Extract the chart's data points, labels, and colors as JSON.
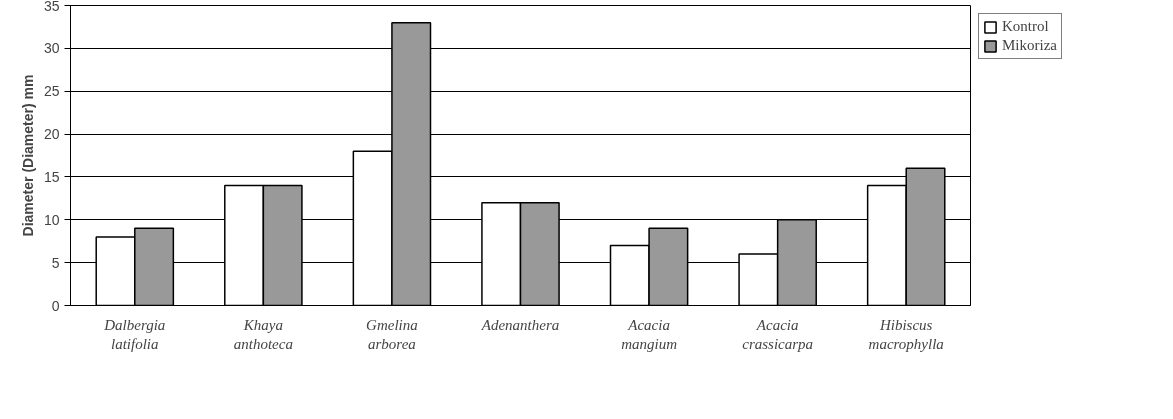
{
  "chart_data": {
    "type": "bar",
    "ylabel": "Diameter (Diameter) mm",
    "categories": [
      "Dalbergia latifolia",
      "Khaya anthoteca",
      "Gmelina arborea",
      "Adenanthera",
      "Acacia mangium",
      "Acacia crassicarpa",
      "Hibiscus macrophylla"
    ],
    "series": [
      {
        "name": "Kontrol",
        "color": "#ffffff",
        "values": [
          8,
          14,
          18,
          12,
          7,
          6,
          14
        ]
      },
      {
        "name": "Mikoriza",
        "color": "#999999",
        "values": [
          9,
          14,
          33,
          12,
          9,
          10,
          16
        ]
      }
    ],
    "ylim": [
      0,
      35
    ],
    "yticks": [
      0,
      5,
      10,
      15,
      20,
      25,
      30,
      35
    ],
    "grid": "y",
    "legend": "top right"
  }
}
